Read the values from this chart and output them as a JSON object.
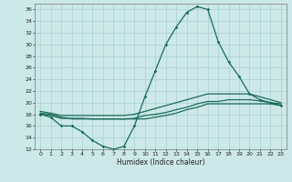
{
  "xlabel": "Humidex (Indice chaleur)",
  "xlim": [
    -0.5,
    23.5
  ],
  "ylim": [
    12,
    37
  ],
  "yticks": [
    12,
    14,
    16,
    18,
    20,
    22,
    24,
    26,
    28,
    30,
    32,
    34,
    36
  ],
  "xticks": [
    0,
    1,
    2,
    3,
    4,
    5,
    6,
    7,
    8,
    9,
    10,
    11,
    12,
    13,
    14,
    15,
    16,
    17,
    18,
    19,
    20,
    21,
    22,
    23
  ],
  "bg_color": "#cce8e8",
  "grid_color": "#aad0d0",
  "line_color": "#1a6b5a",
  "line1_y": [
    18.0,
    17.5,
    16.0,
    16.0,
    15.0,
    13.5,
    12.5,
    12.0,
    12.5,
    16.0,
    21.0,
    25.5,
    30.0,
    33.0,
    35.5,
    36.5,
    36.0,
    30.5,
    27.0,
    24.5,
    21.5,
    20.5,
    20.0,
    19.5
  ],
  "line2_y": [
    18.5,
    18.2,
    17.8,
    17.8,
    17.8,
    17.8,
    17.8,
    17.8,
    17.8,
    18.0,
    18.5,
    19.0,
    19.5,
    20.0,
    20.5,
    21.0,
    21.5,
    21.5,
    21.5,
    21.5,
    21.5,
    21.0,
    20.5,
    20.0
  ],
  "line3_y": [
    18.0,
    17.8,
    17.3,
    17.3,
    17.3,
    17.2,
    17.2,
    17.2,
    17.2,
    17.3,
    17.8,
    18.0,
    18.3,
    18.8,
    19.2,
    19.8,
    20.2,
    20.2,
    20.5,
    20.5,
    20.5,
    20.3,
    20.0,
    19.8
  ],
  "line4_y": [
    18.2,
    18.0,
    17.5,
    17.2,
    17.2,
    17.2,
    17.2,
    17.2,
    17.2,
    17.2,
    17.2,
    17.5,
    17.8,
    18.2,
    18.8,
    19.2,
    19.8,
    19.8,
    19.8,
    19.8,
    19.8,
    19.8,
    19.8,
    19.5
  ]
}
